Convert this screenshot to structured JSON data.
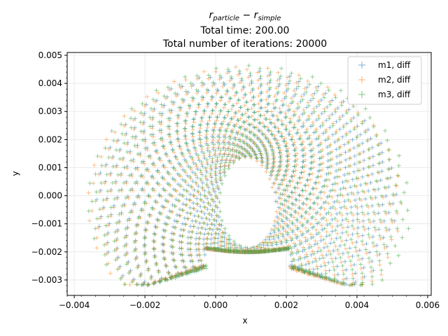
{
  "chart_data": {
    "type": "scatter",
    "title_lines": [
      "Total time: 200.00",
      "Total number of iterations: 20000"
    ],
    "title_math": {
      "base": "r",
      "sub1": "particle",
      "op": " − ",
      "sub2": "simple"
    },
    "xlabel": "x",
    "ylabel": "y",
    "xlim": [
      -0.0042,
      0.0061
    ],
    "ylim": [
      -0.00355,
      0.0051
    ],
    "xticks": [
      -0.004,
      -0.002,
      0.0,
      0.002,
      0.004,
      0.006
    ],
    "xtick_labels": [
      "−0.004",
      "−0.002",
      "0.000",
      "0.002",
      "0.004",
      "0.006"
    ],
    "yticks": [
      -0.003,
      -0.002,
      -0.001,
      0.0,
      0.001,
      0.002,
      0.003,
      0.004,
      0.005
    ],
    "ytick_labels": [
      "−0.003",
      "−0.002",
      "−0.001",
      "0.000",
      "0.001",
      "0.002",
      "0.003",
      "0.004",
      "0.005"
    ],
    "grid": true,
    "marker": "+",
    "legend_loc": "upper right",
    "series": [
      {
        "name": "m1, diff",
        "color": "#1f77b4",
        "shape": {
          "cx": 0.0009,
          "cy": -0.0002,
          "a_end": 0.0043,
          "b_end": 0.0047,
          "a0": 0.0008,
          "b0": 0.0016,
          "phase": 0.0
        }
      },
      {
        "name": "m2, diff",
        "color": "#ff7f0e",
        "shape": {
          "cx": 0.00085,
          "cy": -0.00025,
          "a_end": 0.0045,
          "b_end": 0.0049,
          "a0": 0.0008,
          "b0": 0.0016,
          "phase": 0.35
        }
      },
      {
        "name": "m3, diff",
        "color": "#2ca02c",
        "shape": {
          "cx": 0.00095,
          "cy": -0.0002,
          "a_end": 0.0046,
          "b_end": 0.0049,
          "a0": 0.0008,
          "b0": 0.0016,
          "phase": 0.7
        }
      }
    ]
  }
}
